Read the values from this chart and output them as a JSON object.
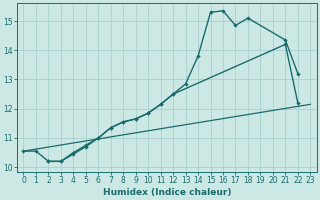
{
  "xlabel": "Humidex (Indice chaleur)",
  "bg_color": "#cce8e5",
  "grid_color": "#aacfcc",
  "line_color": "#1a6b6b",
  "xlim": [
    -0.5,
    23.5
  ],
  "ylim": [
    9.85,
    15.6
  ],
  "line1_x": [
    0,
    1,
    2,
    3,
    4,
    5,
    6,
    7,
    8,
    9,
    10,
    11,
    12,
    13,
    14,
    15,
    16,
    17,
    18,
    21,
    22
  ],
  "line1_y": [
    10.55,
    10.55,
    10.2,
    10.2,
    10.5,
    10.75,
    11.0,
    11.35,
    11.55,
    11.65,
    11.85,
    12.15,
    12.5,
    12.85,
    13.8,
    15.3,
    15.35,
    14.85,
    15.1,
    14.35,
    13.2
  ],
  "line2_x": [
    2,
    3,
    4,
    5,
    6,
    7,
    8,
    9,
    10,
    11,
    12,
    21,
    22
  ],
  "line2_y": [
    10.2,
    10.2,
    10.45,
    10.7,
    11.0,
    11.35,
    11.55,
    11.65,
    11.85,
    12.15,
    12.5,
    14.2,
    12.2
  ],
  "line3_x": [
    0,
    23
  ],
  "line3_y": [
    10.55,
    12.15
  ],
  "yticks": [
    10,
    11,
    12,
    13,
    14,
    15
  ],
  "xticks": [
    0,
    1,
    2,
    3,
    4,
    5,
    6,
    7,
    8,
    9,
    10,
    11,
    12,
    13,
    14,
    15,
    16,
    17,
    18,
    19,
    20,
    21,
    22,
    23
  ]
}
